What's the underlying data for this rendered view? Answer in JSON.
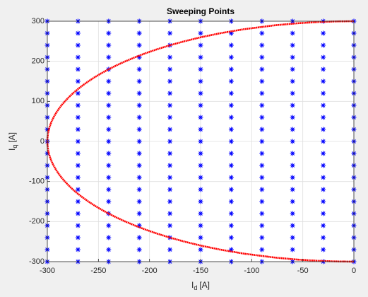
{
  "chart_data": {
    "type": "scatter",
    "title": "Sweeping Points",
    "xlabel": [
      "I",
      "d",
      "[A]"
    ],
    "ylabel": [
      "I",
      "q",
      "[A]"
    ],
    "xlim": [
      -300,
      0
    ],
    "ylim": [
      -300,
      300
    ],
    "xticks": [
      -300,
      -250,
      -200,
      -150,
      -100,
      -50,
      0
    ],
    "yticks": [
      -300,
      -200,
      -100,
      0,
      100,
      200,
      300
    ],
    "grid": true,
    "series": [
      {
        "type": "scatter",
        "color": "#0000ff",
        "x": [
          -300,
          -300,
          -300,
          -300,
          -300,
          -300,
          -300,
          -300,
          -300,
          -300,
          -300,
          -300,
          -300,
          -300,
          -300,
          -300,
          -300,
          -300,
          -300,
          -300,
          -300,
          -270,
          -270,
          -270,
          -270,
          -270,
          -270,
          -270,
          -270,
          -270,
          -270,
          -270,
          -270,
          -270,
          -270,
          -270,
          -270,
          -270,
          -270,
          -270,
          -270,
          -270,
          -240,
          -240,
          -240,
          -240,
          -240,
          -240,
          -240,
          -240,
          -240,
          -240,
          -240,
          -240,
          -240,
          -240,
          -240,
          -240,
          -240,
          -240,
          -240,
          -240,
          -240,
          -210,
          -210,
          -210,
          -210,
          -210,
          -210,
          -210,
          -210,
          -210,
          -210,
          -210,
          -210,
          -210,
          -210,
          -210,
          -210,
          -210,
          -210,
          -210,
          -210,
          -210,
          -180,
          -180,
          -180,
          -180,
          -180,
          -180,
          -180,
          -180,
          -180,
          -180,
          -180,
          -180,
          -180,
          -180,
          -180,
          -180,
          -180,
          -180,
          -180,
          -180,
          -180,
          -150,
          -150,
          -150,
          -150,
          -150,
          -150,
          -150,
          -150,
          -150,
          -150,
          -150,
          -150,
          -150,
          -150,
          -150,
          -150,
          -150,
          -150,
          -150,
          -150,
          -150,
          -120,
          -120,
          -120,
          -120,
          -120,
          -120,
          -120,
          -120,
          -120,
          -120,
          -120,
          -120,
          -120,
          -120,
          -120,
          -120,
          -120,
          -120,
          -120,
          -120,
          -120,
          -90,
          -90,
          -90,
          -90,
          -90,
          -90,
          -90,
          -90,
          -90,
          -90,
          -90,
          -90,
          -90,
          -90,
          -90,
          -90,
          -90,
          -90,
          -90,
          -90,
          -90,
          -60,
          -60,
          -60,
          -60,
          -60,
          -60,
          -60,
          -60,
          -60,
          -60,
          -60,
          -60,
          -60,
          -60,
          -60,
          -60,
          -60,
          -60,
          -60,
          -60,
          -60,
          -30,
          -30,
          -30,
          -30,
          -30,
          -30,
          -30,
          -30,
          -30,
          -30,
          -30,
          -30,
          -30,
          -30,
          -30,
          -30,
          -30,
          -30,
          -30,
          -30,
          -30,
          0,
          0,
          0,
          0,
          0,
          0,
          0,
          0,
          0,
          0,
          0,
          0,
          0,
          0,
          0,
          0,
          0,
          0,
          0,
          0,
          0
        ],
        "values": [
          -300,
          -270,
          -240,
          -210,
          -180,
          -150,
          -120,
          -90,
          -60,
          -30,
          0,
          30,
          60,
          90,
          120,
          150,
          180,
          210,
          240,
          270,
          300,
          -300,
          -270,
          -240,
          -210,
          -180,
          -150,
          -120,
          -90,
          -60,
          -30,
          0,
          30,
          60,
          90,
          120,
          150,
          180,
          210,
          240,
          270,
          300,
          -300,
          -270,
          -240,
          -210,
          -180,
          -150,
          -120,
          -90,
          -60,
          -30,
          0,
          30,
          60,
          90,
          120,
          150,
          180,
          210,
          240,
          270,
          300,
          -300,
          -270,
          -240,
          -210,
          -180,
          -150,
          -120,
          -90,
          -60,
          -30,
          0,
          30,
          60,
          90,
          120,
          150,
          180,
          210,
          240,
          270,
          300,
          -300,
          -270,
          -240,
          -210,
          -180,
          -150,
          -120,
          -90,
          -60,
          -30,
          0,
          30,
          60,
          90,
          120,
          150,
          180,
          210,
          240,
          270,
          300,
          -300,
          -270,
          -240,
          -210,
          -180,
          -150,
          -120,
          -90,
          -60,
          -30,
          0,
          30,
          60,
          90,
          120,
          150,
          180,
          210,
          240,
          270,
          300,
          -300,
          -270,
          -240,
          -210,
          -180,
          -150,
          -120,
          -90,
          -60,
          -30,
          0,
          30,
          60,
          90,
          120,
          150,
          180,
          210,
          240,
          270,
          300,
          -300,
          -270,
          -240,
          -210,
          -180,
          -150,
          -120,
          -90,
          -60,
          -30,
          0,
          30,
          60,
          90,
          120,
          150,
          180,
          210,
          240,
          270,
          300,
          -300,
          -270,
          -240,
          -210,
          -180,
          -150,
          -120,
          -90,
          -60,
          -30,
          0,
          30,
          60,
          90,
          120,
          150,
          180,
          210,
          240,
          270,
          300,
          -300,
          -270,
          -240,
          -210,
          -180,
          -150,
          -120,
          -90,
          -60,
          -30,
          0,
          30,
          60,
          90,
          120,
          150,
          180,
          210,
          240,
          270,
          300,
          -300,
          -270,
          -240,
          -210,
          -180,
          -150,
          -120,
          -90,
          -60,
          -30,
          0,
          30,
          60,
          90,
          120,
          150,
          180,
          210,
          240,
          270,
          300
        ]
      },
      {
        "type": "line",
        "color": "#ff0000",
        "x": [
          0,
          -17.3,
          -34.6,
          -54.5,
          -76.8,
          -107.7,
          -130.8,
          -149.7,
          -165.8,
          -180,
          -192.6,
          -204,
          -214.2,
          -223.6,
          -232.2,
          -240,
          -247.2,
          -253.8,
          -259.8,
          -265.3,
          -270.4,
          -275,
          -279.1,
          -282.8,
          -286.2,
          -289.1,
          -291.7,
          -293.9,
          -295.8,
          -297.3,
          -298.5,
          -299.3,
          -299.8,
          -300,
          -299.8,
          -299.3,
          -298.5,
          -297.3,
          -295.8,
          -293.9,
          -291.7,
          -289.1,
          -286.2,
          -282.8,
          -279.1,
          -275,
          -270.4,
          -265.3,
          -259.8,
          -253.8,
          -247.2,
          -240,
          -232.2,
          -223.6,
          -214.2,
          -204,
          -192.6,
          -180,
          -165.8,
          -149.7,
          -130.8,
          -107.7,
          -76.8,
          -54.5,
          -34.6,
          -17.3,
          0
        ],
        "values": [
          -300,
          -299.5,
          -298,
          -295,
          -290,
          -280,
          -270,
          -260,
          -250,
          -240,
          -230,
          -220,
          -210,
          -200,
          -190,
          -180,
          -170,
          -160,
          -150,
          -140,
          -130,
          -120,
          -110,
          -100,
          -90,
          -80,
          -70,
          -60,
          -50,
          -40,
          -30,
          -20,
          -10,
          0,
          10,
          20,
          30,
          40,
          50,
          60,
          70,
          80,
          90,
          100,
          110,
          120,
          130,
          140,
          150,
          160,
          170,
          180,
          190,
          200,
          210,
          220,
          230,
          240,
          250,
          260,
          270,
          280,
          290,
          295,
          298,
          299.5,
          300
        ]
      }
    ]
  }
}
